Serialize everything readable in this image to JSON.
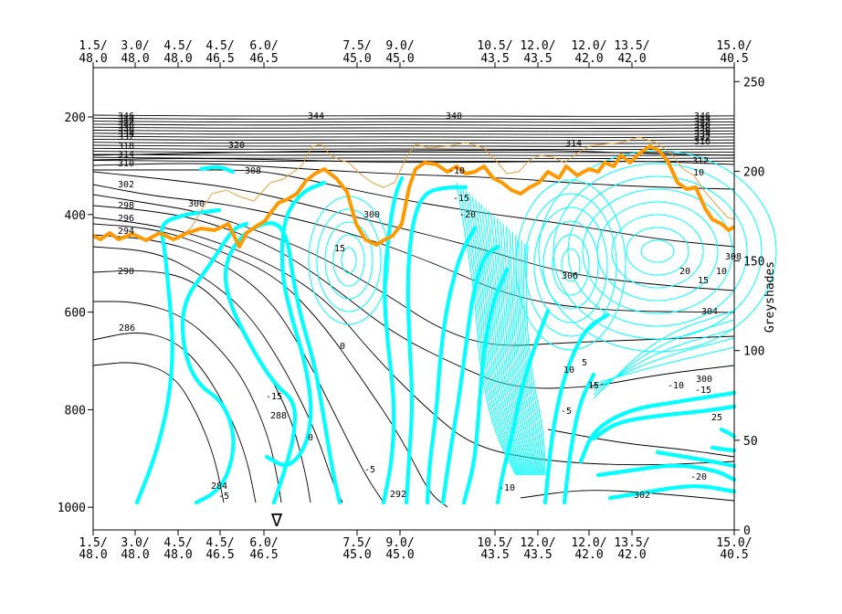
{
  "chart_data": {
    "type": "contour",
    "title": "",
    "colors": {
      "theta": "#000000",
      "wind": "#00ffff",
      "tropopause": "#ff9900",
      "tropopause_thin": "#e8a040",
      "marker": "#00c000"
    },
    "x_axis": {
      "ticks_top": [
        {
          "a": "1.5/",
          "b": "48.0"
        },
        {
          "a": "3.0/",
          "b": "48.0"
        },
        {
          "a": "4.5/",
          "b": "48.0"
        },
        {
          "a": "4.5/",
          "b": "46.5"
        },
        {
          "a": "6.0/",
          "b": "46.5"
        },
        {
          "a": "7.5/",
          "b": "45.0"
        },
        {
          "a": "9.0/",
          "b": "45.0"
        },
        {
          "a": "10.5/",
          "b": "43.5"
        },
        {
          "a": "12.0/",
          "b": "43.5"
        },
        {
          "a": "12.0/",
          "b": "42.0"
        },
        {
          "a": "13.5/",
          "b": "42.0"
        },
        {
          "a": "15.0/",
          "b": "40.5"
        }
      ],
      "ticks_bottom": [
        {
          "a": "1.5/",
          "b": "48.0"
        },
        {
          "a": "3.0/",
          "b": "48.0"
        },
        {
          "a": "4.5/",
          "b": "48.0"
        },
        {
          "a": "4.5/",
          "b": "46.5"
        },
        {
          "a": "6.0/",
          "b": "46.5"
        },
        {
          "a": "7.5/",
          "b": "45.0"
        },
        {
          "a": "9.0/",
          "b": "45.0"
        },
        {
          "a": "10.5/",
          "b": "43.5"
        },
        {
          "a": "12.0/",
          "b": "43.5"
        },
        {
          "a": "12.0/",
          "b": "42.0"
        },
        {
          "a": "13.5/",
          "b": "42.0"
        },
        {
          "a": "15.0/",
          "b": "40.5"
        }
      ]
    },
    "y_left": {
      "ticks": [
        200,
        400,
        600,
        800,
        1000
      ],
      "range": [
        1050,
        100
      ]
    },
    "y_right": {
      "label": "Greyshades",
      "ticks": [
        0,
        50,
        100,
        150,
        200,
        250
      ],
      "range": [
        0,
        255
      ]
    },
    "theta_labels": [
      "346",
      "344",
      "342",
      "340",
      "338",
      "336",
      "334",
      "332",
      "330",
      "328",
      "326",
      "324",
      "322",
      "320",
      "318",
      "316",
      "314",
      "312",
      "310",
      "308",
      "306",
      "304",
      "302",
      "300",
      "298",
      "296",
      "294",
      "292",
      "290",
      "288",
      "286"
    ],
    "wind_labels": [
      "-20",
      "-15",
      "-10",
      "-5",
      "0",
      "5",
      "10",
      "15",
      "20",
      "25"
    ],
    "marker": "∇"
  }
}
